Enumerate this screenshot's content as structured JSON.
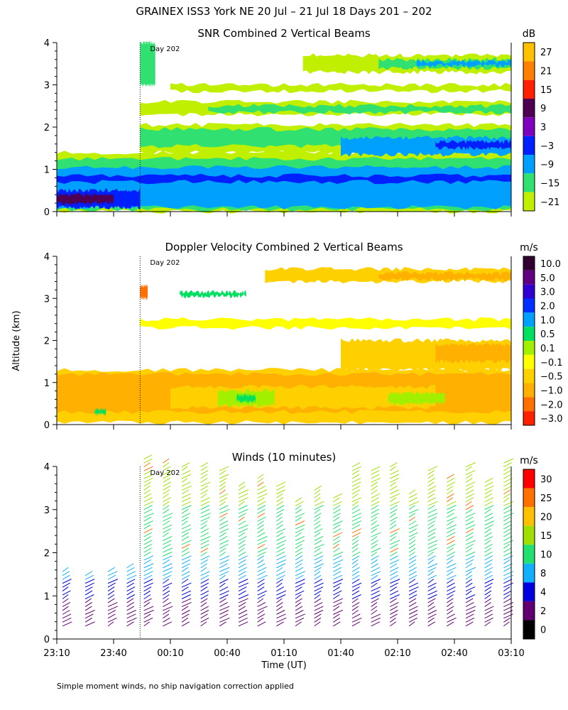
{
  "figure": {
    "title": "GRAINEX ISS3 York NE  20 Jul – 21 Jul 18 Days 201 – 202",
    "ylabel": "Altitude (km)",
    "xlabel": "Time (UT)",
    "footnote": "Simple moment winds, no ship navigation correction applied",
    "day_marker": "Day 202"
  },
  "chart_data": [
    {
      "type": "heatmap",
      "title": "SNR Combined 2 Vertical Beams",
      "unit": "dB",
      "xlim": [
        0,
        240
      ],
      "ylim": [
        0,
        4
      ],
      "yticks": [
        "0",
        "1",
        "2",
        "3",
        "4"
      ],
      "xticks": [
        "",
        "",
        "",
        "",
        "",
        "",
        "",
        "",
        ""
      ],
      "day_marker_x": 44,
      "colorbar": {
        "labels": [
          "27",
          "21",
          "15",
          "9",
          "3",
          "−3",
          "−9",
          "−15",
          "−21"
        ],
        "colors": [
          "#ffc000",
          "#ff8000",
          "#ff2000",
          "#500050",
          "#8000c0",
          "#0020ff",
          "#00a0ff",
          "#30e070",
          "#c0f000"
        ]
      },
      "layers": [
        {
          "color": "#c0f000",
          "x0": 0,
          "x1": 240,
          "h0": 0.0,
          "h1": 1.4
        },
        {
          "color": "#30e070",
          "x0": 0,
          "x1": 240,
          "h0": 0.05,
          "h1": 1.25
        },
        {
          "color": "#00a0ff",
          "x0": 0,
          "x1": 240,
          "h0": 0.1,
          "h1": 1.05
        },
        {
          "color": "#0020ff",
          "x0": 0,
          "x1": 240,
          "h0": 0.7,
          "h1": 0.85
        },
        {
          "color": "#0020ff",
          "x0": 0,
          "x1": 44,
          "h0": 0.1,
          "h1": 0.5
        },
        {
          "color": "#500050",
          "x0": 0,
          "x1": 30,
          "h0": 0.2,
          "h1": 0.4
        },
        {
          "color": "#c0f000",
          "x0": 44,
          "x1": 240,
          "h0": 1.4,
          "h1": 2.05
        },
        {
          "color": "#30e070",
          "x0": 44,
          "x1": 240,
          "h0": 1.55,
          "h1": 1.95
        },
        {
          "color": "#00a0ff",
          "x0": 150,
          "x1": 240,
          "h0": 1.35,
          "h1": 1.75
        },
        {
          "color": "#0020ff",
          "x0": 200,
          "x1": 240,
          "h0": 1.5,
          "h1": 1.65
        },
        {
          "color": "#c0f000",
          "x0": 44,
          "x1": 240,
          "h0": 2.3,
          "h1": 2.6
        },
        {
          "color": "#30e070",
          "x0": 80,
          "x1": 240,
          "h0": 2.35,
          "h1": 2.5
        },
        {
          "color": "#c0f000",
          "x0": 60,
          "x1": 240,
          "h0": 2.85,
          "h1": 3.0
        },
        {
          "color": "#c0f000",
          "x0": 130,
          "x1": 240,
          "h0": 3.3,
          "h1": 3.7
        },
        {
          "color": "#30e070",
          "x0": 170,
          "x1": 240,
          "h0": 3.4,
          "h1": 3.6
        },
        {
          "color": "#00a0ff",
          "x0": 190,
          "x1": 240,
          "h0": 3.45,
          "h1": 3.55
        },
        {
          "color": "#30e070",
          "x0": 44,
          "x1": 52,
          "h0": 3.0,
          "h1": 4.0
        }
      ]
    },
    {
      "type": "heatmap",
      "title": "Doppler Velocity Combined 2 Vertical Beams",
      "unit": "m/s",
      "xlim": [
        0,
        240
      ],
      "ylim": [
        0,
        4
      ],
      "yticks": [
        "0",
        "1",
        "2",
        "3",
        "4"
      ],
      "xticks": [
        "",
        "",
        "",
        "",
        "",
        "",
        "",
        "",
        ""
      ],
      "day_marker_x": 44,
      "colorbar": {
        "labels": [
          "10.0",
          "5.0",
          "3.0",
          "2.0",
          "1.0",
          "0.5",
          "0.1",
          "−0.1",
          "−0.5",
          "−1.0",
          "−2.0",
          "−3.0"
        ],
        "colors": [
          "#300030",
          "#600080",
          "#3000d0",
          "#0030ff",
          "#00a0ff",
          "#00e060",
          "#a0f000",
          "#ffff00",
          "#ffd000",
          "#ffb000",
          "#ff7000",
          "#ff2000"
        ]
      },
      "layers": [
        {
          "color": "#ffd000",
          "x0": 0,
          "x1": 240,
          "h0": 0.05,
          "h1": 1.3
        },
        {
          "color": "#ffb000",
          "x0": 0,
          "x1": 240,
          "h0": 0.3,
          "h1": 1.2
        },
        {
          "color": "#ffd000",
          "x0": 60,
          "x1": 200,
          "h0": 0.4,
          "h1": 0.9
        },
        {
          "color": "#a0f000",
          "x0": 85,
          "x1": 115,
          "h0": 0.45,
          "h1": 0.8
        },
        {
          "color": "#00e060",
          "x0": 95,
          "x1": 105,
          "h0": 0.55,
          "h1": 0.7
        },
        {
          "color": "#a0f000",
          "x0": 175,
          "x1": 205,
          "h0": 0.5,
          "h1": 0.75
        },
        {
          "color": "#00e060",
          "x0": 20,
          "x1": 26,
          "h0": 0.25,
          "h1": 0.35
        },
        {
          "color": "#ffd000",
          "x0": 150,
          "x1": 240,
          "h0": 1.3,
          "h1": 2.0
        },
        {
          "color": "#ffb000",
          "x0": 200,
          "x1": 240,
          "h0": 1.5,
          "h1": 1.9
        },
        {
          "color": "#ffff00",
          "x0": 44,
          "x1": 240,
          "h0": 2.3,
          "h1": 2.5
        },
        {
          "color": "#ffd000",
          "x0": 110,
          "x1": 240,
          "h0": 3.4,
          "h1": 3.7
        },
        {
          "color": "#ffb000",
          "x0": 170,
          "x1": 240,
          "h0": 3.45,
          "h1": 3.6
        },
        {
          "color": "#00e060",
          "x0": 65,
          "x1": 100,
          "h0": 3.05,
          "h1": 3.15
        },
        {
          "color": "#ff7000",
          "x0": 44,
          "x1": 48,
          "h0": 3.0,
          "h1": 3.3
        }
      ]
    },
    {
      "type": "wind_barbs",
      "title": "Winds (10 minutes)",
      "unit": "m/s",
      "xlim": [
        0,
        240
      ],
      "ylim": [
        0,
        4
      ],
      "yticks": [
        "0",
        "1",
        "2",
        "3",
        "4"
      ],
      "xticks": [
        "23:10",
        "23:40",
        "00:10",
        "00:40",
        "01:10",
        "01:40",
        "02:10",
        "02:40",
        "03:10"
      ],
      "day_marker_x": 44,
      "colorbar": {
        "labels": [
          "30",
          "25",
          "20",
          "15",
          "10",
          "8",
          "4",
          "2",
          "0"
        ],
        "colors": [
          "#ff0000",
          "#ff7000",
          "#ffc000",
          "#a0e000",
          "#20e070",
          "#10b0ff",
          "#0000e0",
          "#600070",
          "#000000"
        ]
      },
      "profiles_minutes": [
        3,
        15,
        27,
        37,
        46,
        56,
        66,
        76,
        86,
        96,
        106,
        116,
        126,
        136,
        146,
        156,
        166,
        176,
        186,
        196,
        206,
        216,
        226,
        236
      ],
      "max_altitude_km": [
        1.6,
        1.5,
        1.6,
        1.7,
        4.2,
        4.1,
        4.0,
        4.0,
        3.9,
        3.6,
        3.8,
        3.6,
        3.2,
        3.5,
        3.3,
        4.0,
        3.9,
        4.0,
        3.4,
        3.9,
        3.8,
        4.0,
        3.7,
        4.1
      ]
    }
  ]
}
